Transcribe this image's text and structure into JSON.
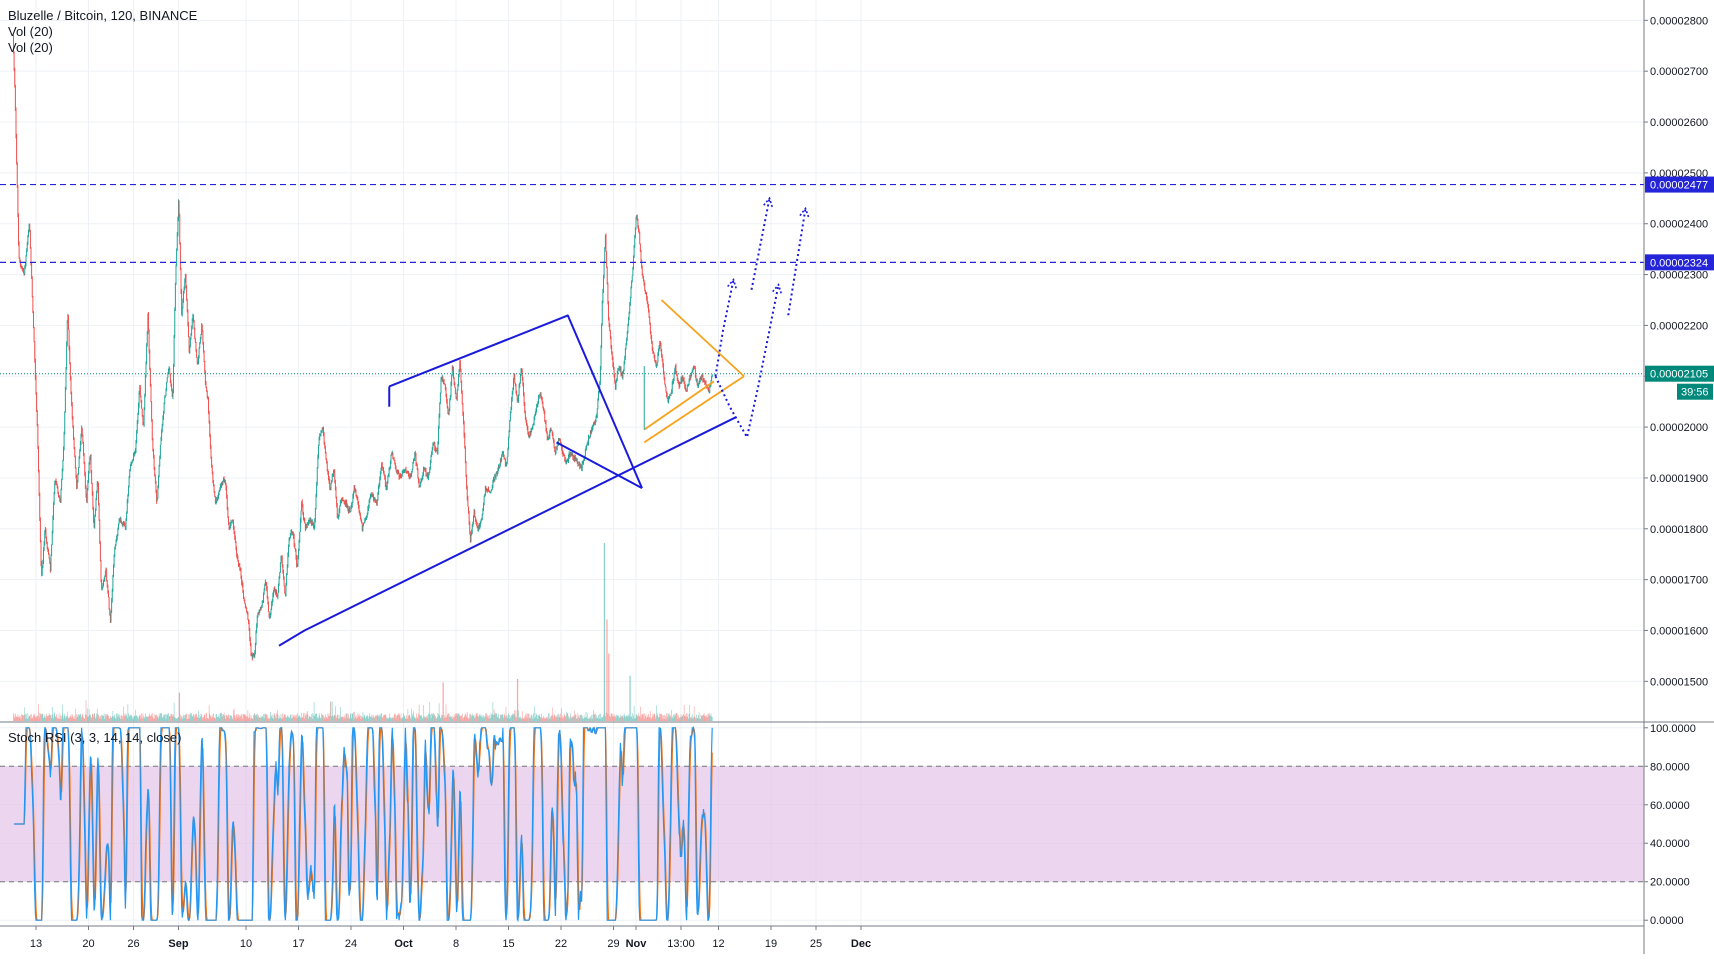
{
  "legend": {
    "title": "Bluzelle / Bitcoin, 120, BINANCE",
    "vol1": "Vol (20)",
    "vol2": "Vol (20)",
    "rsi": "Stoch RSI (3, 3, 14, 14, close)"
  },
  "colors": {
    "bull": "#26a69a",
    "bear": "#ef5350",
    "trend": "#1a1add",
    "orange": "#f7a21b",
    "last_price": "#00897b",
    "stoch_k": "#2196f3",
    "stoch_d": "#ff6d00",
    "rsi_band": "#e1bee7",
    "grid": "#eef1f5",
    "axis_text": "#131722",
    "dashed_level": "#2424d8"
  },
  "price_axis": {
    "min": 1.42e-05,
    "max": 2.84e-05,
    "ticks": [
      "0.00001500",
      "0.00001600",
      "0.00001700",
      "0.00001800",
      "0.00001900",
      "0.00002000",
      "0.00002100",
      "0.00002200",
      "0.00002300",
      "0.00002400",
      "0.00002500",
      "0.00002600",
      "0.00002700",
      "0.00002800"
    ],
    "tick_values": [
      1.5e-05,
      1.6e-05,
      1.7e-05,
      1.8e-05,
      1.9e-05,
      2e-05,
      2.1e-05,
      2.2e-05,
      2.3e-05,
      2.4e-05,
      2.5e-05,
      2.6e-05,
      2.7e-05,
      2.8e-05
    ],
    "labels": [
      {
        "text": "0.00002477",
        "value": 2.477e-05,
        "color": "#2424d8"
      },
      {
        "text": "0.00002324",
        "value": 2.324e-05,
        "color": "#2424d8"
      },
      {
        "text": "0.00002105",
        "value": 2.105e-05,
        "color": "#00897b"
      }
    ],
    "countdown": "39:56"
  },
  "rsi_axis": {
    "min": -3,
    "max": 103,
    "ticks": [
      "100.0000",
      "80.0000",
      "60.0000",
      "40.0000",
      "20.0000",
      "0.0000"
    ],
    "tick_values": [
      100,
      80,
      60,
      40,
      20,
      0
    ],
    "band": [
      20,
      80
    ]
  },
  "time_axis": {
    "labels": [
      {
        "text": "13",
        "day": 13
      },
      {
        "text": "20",
        "day": 20
      },
      {
        "text": "26",
        "day": 26
      },
      {
        "text": "Sep",
        "day": 32,
        "bold": true
      },
      {
        "text": "10",
        "day": 41
      },
      {
        "text": "17",
        "day": 48
      },
      {
        "text": "24",
        "day": 55
      },
      {
        "text": "Oct",
        "day": 62,
        "bold": true
      },
      {
        "text": "8",
        "day": 69
      },
      {
        "text": "15",
        "day": 76
      },
      {
        "text": "22",
        "day": 83
      },
      {
        "text": "29",
        "day": 90
      },
      {
        "text": "Nov",
        "day": 93,
        "bold": true
      },
      {
        "text": "13:00",
        "day": 99
      },
      {
        "text": "12",
        "day": 104
      },
      {
        "text": "19",
        "day": 111
      },
      {
        "text": "25",
        "day": 117
      },
      {
        "text": "Dec",
        "day": 123,
        "bold": true
      }
    ]
  },
  "chart_data": {
    "type": "candlestick",
    "title": "Bluzelle / Bitcoin, 120, BINANCE",
    "x_unit": "day",
    "ylim": [
      1.42e-05,
      2.84e-05
    ],
    "price_path": [
      [
        10.0,
        2.77e-05
      ],
      [
        10.3,
        2.65e-05
      ],
      [
        10.8,
        2.33e-05
      ],
      [
        11.5,
        2.3e-05
      ],
      [
        12.2,
        2.4e-05
      ],
      [
        12.8,
        2.18e-05
      ],
      [
        13.3,
        1.98e-05
      ],
      [
        13.8,
        1.7e-05
      ],
      [
        14.3,
        1.8e-05
      ],
      [
        15.0,
        1.72e-05
      ],
      [
        15.6,
        1.9e-05
      ],
      [
        16.3,
        1.85e-05
      ],
      [
        16.8,
        1.97e-05
      ],
      [
        17.3,
        2.23e-05
      ],
      [
        17.8,
        2.05e-05
      ],
      [
        18.5,
        1.88e-05
      ],
      [
        19.2,
        2e-05
      ],
      [
        19.8,
        1.85e-05
      ],
      [
        20.3,
        1.95e-05
      ],
      [
        20.8,
        1.8e-05
      ],
      [
        21.3,
        1.9e-05
      ],
      [
        21.8,
        1.68e-05
      ],
      [
        22.4,
        1.72e-05
      ],
      [
        23.0,
        1.62e-05
      ],
      [
        23.5,
        1.75e-05
      ],
      [
        24.2,
        1.82e-05
      ],
      [
        25.0,
        1.8e-05
      ],
      [
        25.6,
        1.92e-05
      ],
      [
        26.3,
        1.95e-05
      ],
      [
        26.9,
        2.08e-05
      ],
      [
        27.4,
        2e-05
      ],
      [
        28.0,
        2.22e-05
      ],
      [
        28.6,
        1.97e-05
      ],
      [
        29.2,
        1.85e-05
      ],
      [
        29.7,
        1.97e-05
      ],
      [
        30.2,
        2.05e-05
      ],
      [
        30.8,
        2.12e-05
      ],
      [
        31.3,
        2.05e-05
      ],
      [
        31.7,
        2.3e-05
      ],
      [
        32.1,
        2.45e-05
      ],
      [
        32.5,
        2.22e-05
      ],
      [
        33.0,
        2.3e-05
      ],
      [
        33.5,
        2.15e-05
      ],
      [
        34.0,
        2.22e-05
      ],
      [
        34.6,
        2.12e-05
      ],
      [
        35.2,
        2.2e-05
      ],
      [
        35.6,
        2.1e-05
      ],
      [
        36.0,
        2.05e-05
      ],
      [
        36.5,
        1.92e-05
      ],
      [
        37.0,
        1.85e-05
      ],
      [
        37.6,
        1.88e-05
      ],
      [
        38.3,
        1.9e-05
      ],
      [
        38.8,
        1.8e-05
      ],
      [
        39.3,
        1.82e-05
      ],
      [
        39.8,
        1.75e-05
      ],
      [
        40.3,
        1.72e-05
      ],
      [
        40.8,
        1.66e-05
      ],
      [
        41.3,
        1.63e-05
      ],
      [
        41.8,
        1.55e-05
      ],
      [
        42.2,
        1.55e-05
      ],
      [
        42.6,
        1.63e-05
      ],
      [
        43.2,
        1.65e-05
      ],
      [
        43.7,
        1.7e-05
      ],
      [
        44.2,
        1.62e-05
      ],
      [
        44.8,
        1.68e-05
      ],
      [
        45.3,
        1.67e-05
      ],
      [
        45.8,
        1.75e-05
      ],
      [
        46.3,
        1.66e-05
      ],
      [
        46.8,
        1.78e-05
      ],
      [
        47.3,
        1.8e-05
      ],
      [
        47.9,
        1.72e-05
      ],
      [
        48.5,
        1.85e-05
      ],
      [
        49.0,
        1.8e-05
      ],
      [
        49.6,
        1.82e-05
      ],
      [
        50.2,
        1.8e-05
      ],
      [
        50.8,
        1.98e-05
      ],
      [
        51.3,
        2e-05
      ],
      [
        51.8,
        1.93e-05
      ],
      [
        52.3,
        1.88e-05
      ],
      [
        52.8,
        1.92e-05
      ],
      [
        53.3,
        1.82e-05
      ],
      [
        53.8,
        1.86e-05
      ],
      [
        54.4,
        1.85e-05
      ],
      [
        55.0,
        1.83e-05
      ],
      [
        55.5,
        1.88e-05
      ],
      [
        56.0,
        1.85e-05
      ],
      [
        56.6,
        1.8e-05
      ],
      [
        57.2,
        1.83e-05
      ],
      [
        57.8,
        1.87e-05
      ],
      [
        58.5,
        1.85e-05
      ],
      [
        59.2,
        1.93e-05
      ],
      [
        59.8,
        1.88e-05
      ],
      [
        60.5,
        1.95e-05
      ],
      [
        61.0,
        1.92e-05
      ],
      [
        61.6,
        1.9e-05
      ],
      [
        62.3,
        1.92e-05
      ],
      [
        63.0,
        1.9e-05
      ],
      [
        63.6,
        1.95e-05
      ],
      [
        64.2,
        1.88e-05
      ],
      [
        64.8,
        1.92e-05
      ],
      [
        65.4,
        1.9e-05
      ],
      [
        66.0,
        1.97e-05
      ],
      [
        66.6,
        1.95e-05
      ],
      [
        67.1,
        2.1e-05
      ],
      [
        67.6,
        2.08e-05
      ],
      [
        68.1,
        2.02e-05
      ],
      [
        68.6,
        2.12e-05
      ],
      [
        69.1,
        2.05e-05
      ],
      [
        69.6,
        2.13e-05
      ],
      [
        70.1,
        2e-05
      ],
      [
        70.5,
        1.88e-05
      ],
      [
        71.0,
        1.78e-05
      ],
      [
        71.5,
        1.83e-05
      ],
      [
        72.0,
        1.8e-05
      ],
      [
        72.5,
        1.82e-05
      ],
      [
        73.0,
        1.88e-05
      ],
      [
        73.6,
        1.87e-05
      ],
      [
        74.2,
        1.9e-05
      ],
      [
        74.8,
        1.92e-05
      ],
      [
        75.3,
        1.95e-05
      ],
      [
        75.8,
        1.92e-05
      ],
      [
        76.3,
        2.02e-05
      ],
      [
        76.8,
        2.1e-05
      ],
      [
        77.3,
        2.05e-05
      ],
      [
        77.8,
        2.12e-05
      ],
      [
        78.3,
        2.02e-05
      ],
      [
        78.8,
        1.98e-05
      ],
      [
        79.3,
        2e-05
      ],
      [
        79.8,
        2.04e-05
      ],
      [
        80.3,
        2.07e-05
      ],
      [
        80.8,
        2.03e-05
      ],
      [
        81.3,
        1.97e-05
      ],
      [
        81.8,
        2e-05
      ],
      [
        82.3,
        1.95e-05
      ],
      [
        82.8,
        1.98e-05
      ],
      [
        83.3,
        1.95e-05
      ],
      [
        83.8,
        1.93e-05
      ],
      [
        84.3,
        1.95e-05
      ],
      [
        84.8,
        1.94e-05
      ],
      [
        85.3,
        1.93e-05
      ],
      [
        85.8,
        1.92e-05
      ],
      [
        86.3,
        1.95e-05
      ],
      [
        86.8,
        1.98e-05
      ],
      [
        87.3,
        2e-05
      ],
      [
        87.8,
        2.02e-05
      ],
      [
        88.3,
        2.1e-05
      ],
      [
        88.6,
        2.25e-05
      ],
      [
        89.0,
        2.38e-05
      ],
      [
        89.4,
        2.22e-05
      ],
      [
        89.8,
        2.15e-05
      ],
      [
        90.3,
        2.08e-05
      ],
      [
        90.8,
        2.12e-05
      ],
      [
        91.3,
        2.1e-05
      ],
      [
        91.8,
        2.17e-05
      ],
      [
        92.3,
        2.25e-05
      ],
      [
        92.7,
        2.32e-05
      ],
      [
        93.1,
        2.42e-05
      ],
      [
        93.5,
        2.38e-05
      ],
      [
        93.9,
        2.3e-05
      ],
      [
        94.3,
        2.27e-05
      ],
      [
        94.8,
        2.22e-05
      ],
      [
        95.3,
        2.15e-05
      ],
      [
        95.8,
        2.12e-05
      ],
      [
        96.3,
        2.17e-05
      ],
      [
        96.8,
        2.1e-05
      ],
      [
        97.3,
        2.05e-05
      ],
      [
        97.8,
        2.07e-05
      ],
      [
        98.3,
        2.12e-05
      ],
      [
        98.8,
        2.08e-05
      ],
      [
        99.3,
        2.1e-05
      ],
      [
        99.8,
        2.07e-05
      ],
      [
        100.3,
        2.1e-05
      ],
      [
        100.8,
        2.12e-05
      ],
      [
        101.3,
        2.08e-05
      ],
      [
        101.8,
        2.1e-05
      ],
      [
        102.3,
        2.09e-05
      ],
      [
        102.8,
        2.07e-05
      ],
      [
        103.2,
        2.105e-05
      ]
    ],
    "volume_spikes": [
      [
        88.8,
        1.0
      ],
      [
        89.1,
        0.55
      ],
      [
        89.4,
        0.35
      ],
      [
        92.2,
        0.22
      ],
      [
        67.3,
        0.18
      ],
      [
        77.2,
        0.2
      ],
      [
        32.1,
        0.12
      ]
    ],
    "annotations": {
      "horizontal_levels": [
        2.477e-05,
        2.324e-05
      ],
      "last_price": 2.105e-05,
      "trend_lines": [
        {
          "color": "#1a1add",
          "points": [
            [
              45.4,
              1.57e-05
            ],
            [
              48.8,
              1.6e-05
            ],
            [
              106.4,
              2.02e-05
            ]
          ]
        },
        {
          "color": "#1a1add",
          "points": [
            [
              60.1,
              2.08e-05
            ],
            [
              84.0,
              2.22e-05
            ]
          ]
        },
        {
          "color": "#1a1add",
          "points": [
            [
              83.9,
              2.22e-05
            ],
            [
              93.8,
              1.88e-05
            ]
          ]
        },
        {
          "color": "#1a1add",
          "points": [
            [
              82.4,
              1.97e-05
            ],
            [
              93.8,
              1.88e-05
            ]
          ]
        },
        {
          "color": "#1a1add",
          "points": [
            [
              60.1,
              2.08e-05
            ],
            [
              60.1,
              2.04e-05
            ]
          ]
        }
      ],
      "triangle": {
        "color": "#f7a21b",
        "apex": [
          107.4,
          2.1e-05
        ],
        "upper_start": [
          96.4,
          2.25e-05
        ],
        "lower_start": [
          94.1,
          1.97e-05
        ]
      },
      "projection_paths": [
        [
          [
            103.6,
            2.1e-05
          ],
          [
            104.6,
            2.19e-05
          ],
          [
            106.0,
            2.29e-05
          ]
        ],
        [
          [
            103.6,
            2.1e-05
          ],
          [
            105.5,
            2.04e-05
          ],
          [
            107.8,
            1.98e-05
          ],
          [
            109.3,
            2.08e-05
          ],
          [
            112.0,
            2.28e-05
          ]
        ],
        [
          [
            108.4,
            2.27e-05
          ],
          [
            110.8,
            2.45e-05
          ]
        ],
        [
          [
            113.3,
            2.22e-05
          ],
          [
            115.6,
            2.43e-05
          ]
        ]
      ]
    }
  }
}
